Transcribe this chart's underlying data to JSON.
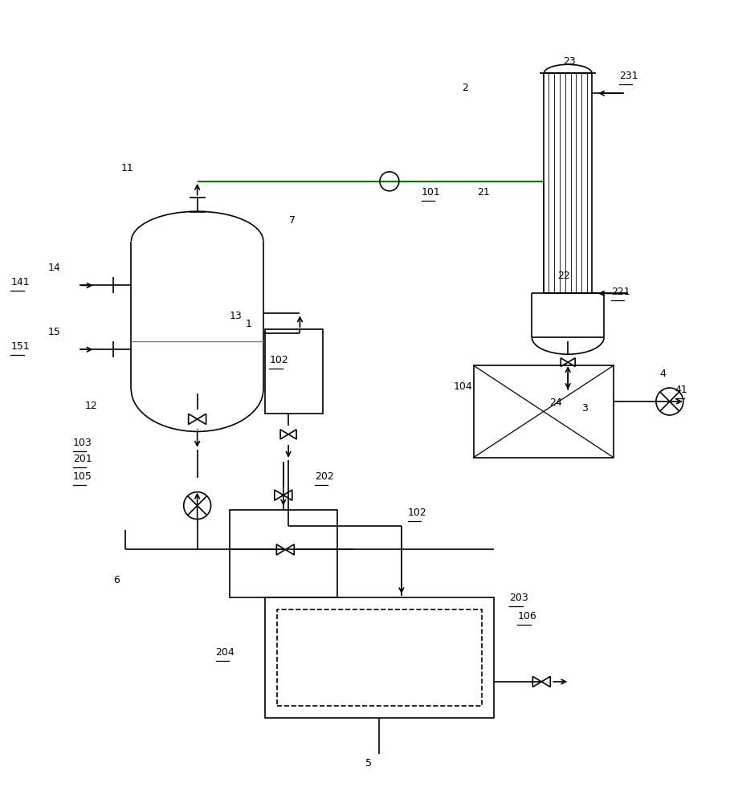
{
  "bg_color": "#ffffff",
  "line_color": "#000000",
  "green_line_color": "#008000",
  "gray_line_color": "#808080",
  "figure_size": [
    9.09,
    10.0
  ],
  "dpi": 100
}
